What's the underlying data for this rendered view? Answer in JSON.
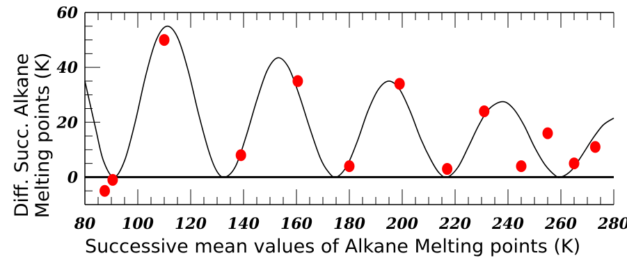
{
  "chart_data": {
    "type": "scatter",
    "title": "",
    "xlabel": "Successive mean values of Alkane Melting points (K)",
    "ylabel_lines": [
      "Diff. Succ. Alkane",
      "Melting points (K)"
    ],
    "xlim": [
      80,
      280
    ],
    "ylim": [
      -10,
      60
    ],
    "x_ticks": [
      80,
      100,
      120,
      140,
      160,
      180,
      200,
      220,
      240,
      260,
      280
    ],
    "y_ticks": [
      0,
      20,
      40,
      60
    ],
    "grid": false,
    "legend": "none",
    "reference_line": {
      "y": 0,
      "color": "#000000"
    },
    "series": [
      {
        "kind": "points",
        "color": "#ff0000",
        "points": [
          {
            "x": 87.5,
            "y": -5
          },
          {
            "x": 90.5,
            "y": -1
          },
          {
            "x": 110,
            "y": 50
          },
          {
            "x": 139,
            "y": 8
          },
          {
            "x": 160.5,
            "y": 35
          },
          {
            "x": 180,
            "y": 4
          },
          {
            "x": 199,
            "y": 34
          },
          {
            "x": 217,
            "y": 3
          },
          {
            "x": 231,
            "y": 24
          },
          {
            "x": 245,
            "y": 4
          },
          {
            "x": 255,
            "y": 16
          },
          {
            "x": 265,
            "y": 5
          },
          {
            "x": 273,
            "y": 11
          }
        ]
      },
      {
        "kind": "curve",
        "color": "#000000",
        "points": [
          {
            "x": 80,
            "y": 35
          },
          {
            "x": 84,
            "y": 18
          },
          {
            "x": 87,
            "y": 6
          },
          {
            "x": 91,
            "y": 0
          },
          {
            "x": 95,
            "y": 6
          },
          {
            "x": 99,
            "y": 20
          },
          {
            "x": 103,
            "y": 37
          },
          {
            "x": 107,
            "y": 50
          },
          {
            "x": 111,
            "y": 55
          },
          {
            "x": 115,
            "y": 51
          },
          {
            "x": 119,
            "y": 39
          },
          {
            "x": 123,
            "y": 23
          },
          {
            "x": 127,
            "y": 9
          },
          {
            "x": 130,
            "y": 2
          },
          {
            "x": 133,
            "y": 0
          },
          {
            "x": 137,
            "y": 4
          },
          {
            "x": 141,
            "y": 15
          },
          {
            "x": 145,
            "y": 28
          },
          {
            "x": 149,
            "y": 39
          },
          {
            "x": 153,
            "y": 43.5
          },
          {
            "x": 157,
            "y": 40
          },
          {
            "x": 161,
            "y": 30
          },
          {
            "x": 165,
            "y": 18
          },
          {
            "x": 169,
            "y": 7
          },
          {
            "x": 172,
            "y": 2
          },
          {
            "x": 175,
            "y": 0
          },
          {
            "x": 179,
            "y": 4
          },
          {
            "x": 183,
            "y": 13
          },
          {
            "x": 187,
            "y": 24
          },
          {
            "x": 191,
            "y": 32
          },
          {
            "x": 195,
            "y": 35
          },
          {
            "x": 199,
            "y": 32
          },
          {
            "x": 203,
            "y": 24
          },
          {
            "x": 207,
            "y": 14
          },
          {
            "x": 211,
            "y": 6
          },
          {
            "x": 214,
            "y": 1.5
          },
          {
            "x": 217,
            "y": 0
          },
          {
            "x": 221,
            "y": 3.5
          },
          {
            "x": 225,
            "y": 11
          },
          {
            "x": 229,
            "y": 19
          },
          {
            "x": 233,
            "y": 25
          },
          {
            "x": 238,
            "y": 27.5
          },
          {
            "x": 242,
            "y": 25
          },
          {
            "x": 246,
            "y": 19
          },
          {
            "x": 250,
            "y": 11
          },
          {
            "x": 254,
            "y": 4.5
          },
          {
            "x": 258,
            "y": 0.5
          },
          {
            "x": 260,
            "y": 0
          },
          {
            "x": 264,
            "y": 2.5
          },
          {
            "x": 268,
            "y": 8
          },
          {
            "x": 272,
            "y": 14
          },
          {
            "x": 276,
            "y": 19
          },
          {
            "x": 280,
            "y": 21.5
          }
        ]
      }
    ]
  }
}
